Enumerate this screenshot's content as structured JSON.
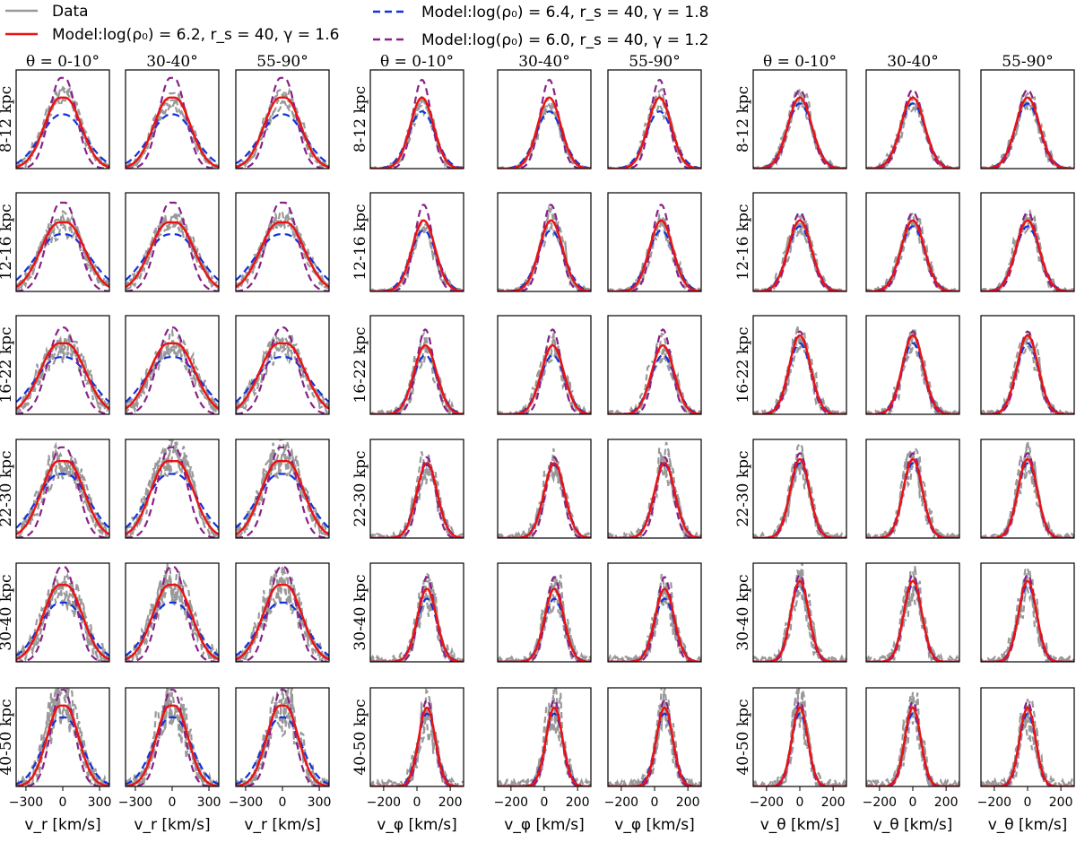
{
  "legend": {
    "entries": [
      {
        "id": "data",
        "label": "Data",
        "color": "#999999",
        "dash": "solid"
      },
      {
        "id": "red",
        "label": "Model:log(ρ₀) = 6.2, r_s = 40, γ = 1.6",
        "color": "#ee1111",
        "dash": "solid"
      },
      {
        "id": "blue",
        "label": "Model:log(ρ₀) = 6.4, r_s = 40, γ = 1.8",
        "color": "#1133dd",
        "dash": "dashed"
      },
      {
        "id": "purple",
        "label": "Model:log(ρ₀) = 6.0, r_s = 40, γ = 1.2",
        "color": "#882288",
        "dash": "dashed"
      }
    ]
  },
  "chart_data": {
    "type": "line",
    "description_free": true,
    "column_titles": [
      "θ = 0-10°",
      "30-40°",
      "55-90°"
    ],
    "row_labels": [
      "8-12 kpc",
      "12-16 kpc",
      "16-22 kpc",
      "22-30 kpc",
      "30-40 kpc",
      "40-50 kpc"
    ],
    "groups": [
      {
        "id": "vr",
        "xlabel": "v_r [km/s]",
        "xlim": [
          -380,
          380
        ],
        "xticks": [
          -300,
          0,
          300
        ],
        "tick_labels": [
          "−300",
          "0",
          "300"
        ]
      },
      {
        "id": "vphi",
        "xlabel": "v_φ [km/s]",
        "xlim": [
          -280,
          280
        ],
        "xticks": [
          -200,
          0,
          200
        ],
        "tick_labels": [
          "−200",
          "0",
          "200"
        ]
      },
      {
        "id": "vtheta",
        "xlabel": "v_θ [km/s]",
        "xlim": [
          -280,
          280
        ],
        "xticks": [
          -200,
          0,
          200
        ],
        "tick_labels": [
          "−200",
          "0",
          "200"
        ]
      }
    ],
    "model_shapes_note": "Approximate curve shapes read from the plot: center (km/s), sigma (km/s), relative peak height (0-1 of panel height), flat-top width.",
    "series": {
      "vr": {
        "red": {
          "center": 0,
          "sigma": [
            130,
            150,
            155,
            140,
            135,
            110
          ],
          "peak": [
            0.72,
            0.7,
            0.72,
            0.78,
            0.78,
            0.82
          ],
          "flat": [
            40,
            60,
            60,
            70,
            50,
            40
          ]
        },
        "blue": {
          "center": 0,
          "sigma": [
            170,
            200,
            205,
            185,
            170,
            140
          ],
          "peak": [
            0.55,
            0.58,
            0.58,
            0.65,
            0.6,
            0.7
          ],
          "flat": [
            20,
            40,
            40,
            50,
            40,
            30
          ]
        },
        "purple": {
          "center": 0,
          "sigma": [
            95,
            105,
            110,
            100,
            95,
            85
          ],
          "peak": [
            0.92,
            0.9,
            0.88,
            0.92,
            0.96,
            0.98
          ],
          "flat": [
            30,
            40,
            20,
            40,
            30,
            20
          ]
        }
      },
      "vphi": {
        "red": {
          "center": [
            30,
            40,
            50,
            60,
            60,
            60
          ],
          "sigma": [
            70,
            70,
            68,
            62,
            58,
            50
          ],
          "peak": [
            0.72,
            0.72,
            0.7,
            0.76,
            0.74,
            0.8
          ]
        },
        "blue": {
          "center": [
            30,
            40,
            50,
            60,
            60,
            60
          ],
          "sigma": [
            80,
            78,
            74,
            64,
            62,
            54
          ],
          "peak": [
            0.58,
            0.62,
            0.6,
            0.74,
            0.64,
            0.74
          ]
        },
        "purple": {
          "center": [
            30,
            40,
            50,
            60,
            60,
            60
          ],
          "sigma": [
            55,
            55,
            52,
            50,
            48,
            44
          ],
          "peak": [
            0.9,
            0.88,
            0.86,
            0.82,
            0.86,
            0.88
          ]
        }
      },
      "vtheta": {
        "red": {
          "center": 0,
          "sigma": [
            72,
            70,
            64,
            58,
            54,
            48
          ],
          "peak": [
            0.72,
            0.72,
            0.8,
            0.8,
            0.82,
            0.8
          ]
        },
        "blue": {
          "center": 0,
          "sigma": [
            76,
            74,
            68,
            60,
            56,
            50
          ],
          "peak": [
            0.66,
            0.66,
            0.72,
            0.76,
            0.78,
            0.74
          ]
        },
        "purple": {
          "center": 0,
          "sigma": [
            64,
            62,
            58,
            54,
            50,
            44
          ],
          "peak": [
            0.8,
            0.8,
            0.84,
            0.86,
            0.88,
            0.86
          ]
        }
      }
    }
  }
}
